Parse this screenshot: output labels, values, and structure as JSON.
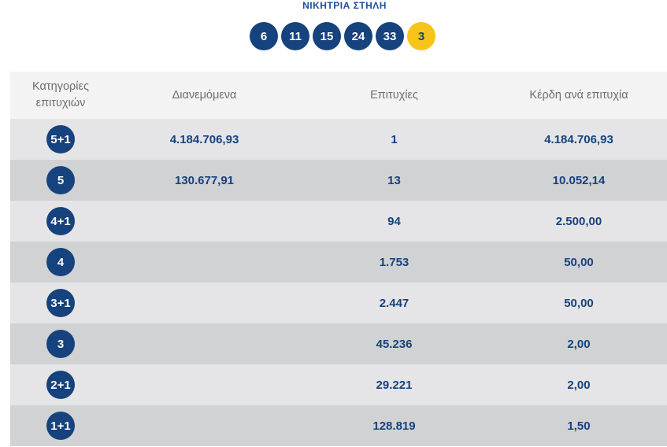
{
  "winning": {
    "title": "ΝΙΚΗΤΡΙΑ ΣΤΗΛΗ",
    "numbers": [
      "6",
      "11",
      "15",
      "24",
      "33"
    ],
    "joker": "3"
  },
  "table": {
    "headers": {
      "category": "Κατηγορίες επιτυχιών",
      "distributed": "Διανεμόμενα",
      "winners": "Επιτυχίες",
      "prize": "Κέρδη ανά επιτυχία"
    },
    "rows": [
      {
        "category": "5+1",
        "distributed": "4.184.706,93",
        "winners": "1",
        "prize": "4.184.706,93"
      },
      {
        "category": "5",
        "distributed": "130.677,91",
        "winners": "13",
        "prize": "10.052,14"
      },
      {
        "category": "4+1",
        "distributed": "",
        "winners": "94",
        "prize": "2.500,00"
      },
      {
        "category": "4",
        "distributed": "",
        "winners": "1.753",
        "prize": "50,00"
      },
      {
        "category": "3+1",
        "distributed": "",
        "winners": "2.447",
        "prize": "50,00"
      },
      {
        "category": "3",
        "distributed": "",
        "winners": "45.236",
        "prize": "2,00"
      },
      {
        "category": "2+1",
        "distributed": "",
        "winners": "29.221",
        "prize": "2,00"
      },
      {
        "category": "1+1",
        "distributed": "",
        "winners": "128.819",
        "prize": "1,50"
      }
    ]
  },
  "colors": {
    "primary_blue": "#16427d",
    "joker_yellow": "#f7c51a",
    "header_bg": "#f3f3f4",
    "row_light": "#e5e5e7",
    "row_dark": "#d1d2d4"
  }
}
